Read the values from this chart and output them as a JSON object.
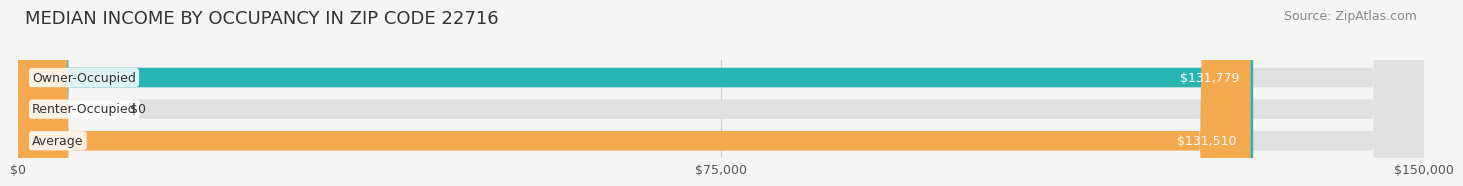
{
  "title": "MEDIAN INCOME BY OCCUPANCY IN ZIP CODE 22716",
  "source": "Source: ZipAtlas.com",
  "categories": [
    "Owner-Occupied",
    "Renter-Occupied",
    "Average"
  ],
  "values": [
    131779,
    0,
    131510
  ],
  "bar_colors": [
    "#2ab5b5",
    "#b8a0c8",
    "#f5a94e"
  ],
  "bar_labels": [
    "$131,779",
    "$0",
    "$131,510"
  ],
  "xlim": [
    0,
    150000
  ],
  "xticks": [
    0,
    75000,
    150000
  ],
  "xtick_labels": [
    "$0",
    "$75,000",
    "$150,000"
  ],
  "background_color": "#f5f5f5",
  "bar_bg_color": "#e0e0e0",
  "title_fontsize": 13,
  "source_fontsize": 9,
  "label_fontsize": 9,
  "tick_fontsize": 9
}
